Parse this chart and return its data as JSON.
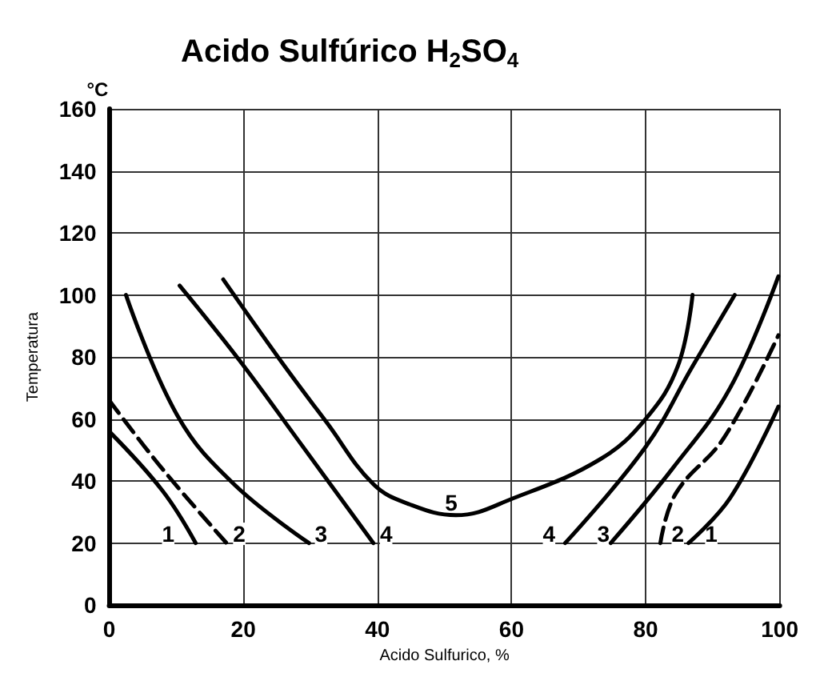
{
  "chart_data": {
    "type": "line",
    "title": "Acido Sulfúrico H$_{2}$SO$_{4}$",
    "xlabel": "Acido Sulfurico, %",
    "ylabel": "Temperatura",
    "xlim": [
      0,
      100
    ],
    "ylim": [
      0,
      160
    ],
    "xticks": [
      0,
      20,
      40,
      60,
      80,
      100
    ],
    "yticks": [
      0,
      20,
      40,
      60,
      80,
      100,
      120,
      140,
      160
    ],
    "grid": true,
    "marker": "none",
    "series": [
      {
        "color": "#000000",
        "x": [
          0,
          7.9,
          12.9
        ],
        "values": [
          56,
          37,
          20
        ]
      },
      {
        "color": "#000000",
        "x": [
          86.4,
          92.6,
          99.8
        ],
        "values": [
          20,
          34.5,
          64
        ]
      },
      {
        "color": "#000000",
        "line_style": "dashed",
        "x": [
          0,
          7.9,
          17.5
        ],
        "values": [
          66,
          44,
          20
        ]
      },
      {
        "color": "#000000",
        "line_style": "dashed",
        "x": [
          82.2,
          84.5,
          91.7,
          99.8
        ],
        "values": [
          20,
          36,
          54,
          87
        ]
      },
      {
        "color": "#000000",
        "x": [
          2.5,
          10.2,
          18.6,
          29.8
        ],
        "values": [
          100,
          61,
          39,
          20
        ]
      },
      {
        "color": "#000000",
        "x": [
          74.8,
          84,
          92.6,
          99.8
        ],
        "values": [
          20,
          44,
          70,
          106
        ]
      },
      {
        "color": "#000000",
        "x": [
          10.5,
          19.4,
          27.9,
          39.4
        ],
        "values": [
          103,
          79,
          54,
          20
        ]
      },
      {
        "color": "#000000",
        "x": [
          68,
          80,
          87,
          93.3
        ],
        "values": [
          20,
          51,
          77,
          100
        ]
      },
      {
        "color": "#000000",
        "x": [
          17,
          25.5,
          32.4,
          39.4,
          44.8,
          51.7,
          60.3,
          73.2,
          80,
          84.8,
          87
        ],
        "values": [
          105,
          79,
          59,
          39,
          32.5,
          29,
          34.5,
          47,
          60,
          77,
          100
        ]
      }
    ],
    "annotations": [
      "°C",
      {
        "text": "1",
        "x": 8.8,
        "y": 23
      },
      {
        "text": "2",
        "x": 19.4,
        "y": 23
      },
      {
        "text": "3",
        "x": 31.6,
        "y": 23
      },
      {
        "text": "4",
        "x": 41.3,
        "y": 23
      },
      {
        "text": "5",
        "x": 51,
        "y": 33
      },
      {
        "text": "4",
        "x": 65.6,
        "y": 23
      },
      {
        "text": "3",
        "x": 73.7,
        "y": 23
      },
      {
        "text": "2",
        "x": 84.8,
        "y": 23
      },
      {
        "text": "1",
        "x": 89.8,
        "y": 23
      }
    ]
  }
}
